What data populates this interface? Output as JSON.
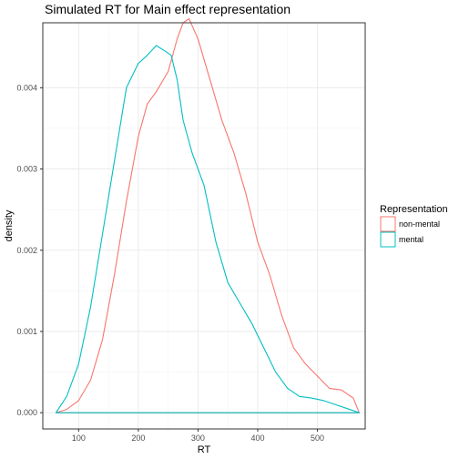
{
  "chart_data": {
    "type": "line",
    "title": "Simulated RT for Main effect representation",
    "xlabel": "RT",
    "ylabel": "density",
    "xlim": [
      40,
      580
    ],
    "ylim": [
      -0.0002,
      0.0048
    ],
    "x_ticks": [
      100,
      200,
      300,
      400,
      500
    ],
    "y_ticks": [
      0.0,
      0.001,
      0.002,
      0.003,
      0.004
    ],
    "x_tick_labels": [
      "100",
      "200",
      "300",
      "400",
      "500"
    ],
    "y_tick_labels": [
      "0.000",
      "0.001",
      "0.002",
      "0.003",
      "0.004"
    ],
    "grid": true,
    "legend": {
      "title": "Representation",
      "position": "right"
    },
    "series": [
      {
        "name": "non-mental",
        "color": "#F8766D",
        "x": [
          62,
          80,
          100,
          120,
          140,
          160,
          180,
          200,
          215,
          230,
          250,
          265,
          275,
          285,
          300,
          320,
          340,
          360,
          380,
          400,
          420,
          440,
          460,
          480,
          500,
          520,
          540,
          560,
          570
        ],
        "y": [
          0.0,
          4e-05,
          0.00015,
          0.0004,
          0.0009,
          0.0017,
          0.0026,
          0.0034,
          0.0038,
          0.00395,
          0.0042,
          0.0046,
          0.0048,
          0.00485,
          0.0046,
          0.0041,
          0.0036,
          0.0032,
          0.0027,
          0.0021,
          0.0017,
          0.0012,
          0.0008,
          0.0006,
          0.00045,
          0.0003,
          0.00028,
          0.00018,
          0.0
        ]
      },
      {
        "name": "mental",
        "color": "#00BFC4",
        "x": [
          62,
          80,
          100,
          120,
          140,
          160,
          180,
          200,
          215,
          230,
          245,
          255,
          265,
          275,
          290,
          310,
          330,
          350,
          370,
          390,
          410,
          430,
          450,
          470,
          490,
          510,
          530,
          550,
          570
        ],
        "y": [
          0.0,
          0.0002,
          0.0006,
          0.0013,
          0.0022,
          0.0031,
          0.004,
          0.0043,
          0.0044,
          0.00452,
          0.00445,
          0.0044,
          0.0041,
          0.0036,
          0.0032,
          0.0028,
          0.0021,
          0.0016,
          0.00135,
          0.0011,
          0.0008,
          0.0005,
          0.0003,
          0.0002,
          0.00018,
          0.00015,
          0.0001,
          5e-05,
          0.0
        ]
      }
    ]
  }
}
